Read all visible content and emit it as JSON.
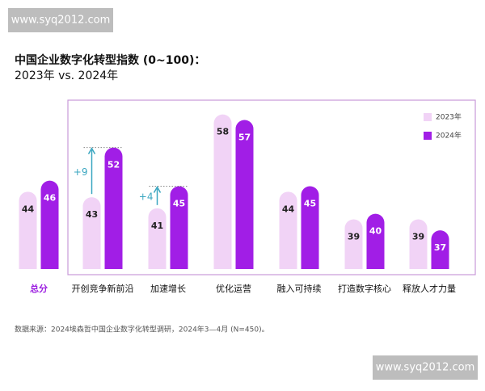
{
  "watermarks": [
    "www.syq2012.com",
    "www.syq2012.com"
  ],
  "chart_data": {
    "type": "bar",
    "title": "中国企业数字化转型指数 (0~100)：",
    "subtitle": "2023年 vs. 2024年",
    "categories": [
      "总分",
      "开创竞争新前沿",
      "加速增长",
      "优化运营",
      "融入可持续",
      "打造数字核心",
      "释放人才力量"
    ],
    "series": [
      {
        "name": "2023年",
        "color": "#f1d3f6",
        "values": [
          44,
          43,
          41,
          58,
          44,
          39,
          39
        ]
      },
      {
        "name": "2024年",
        "color": "#a11ee6",
        "values": [
          46,
          52,
          45,
          57,
          45,
          40,
          37
        ]
      }
    ],
    "ylim": [
      30,
      60
    ],
    "legend": "top-right",
    "annotations": [
      {
        "text": "+9",
        "category": "开创竞争新前沿"
      },
      {
        "text": "+4",
        "category": "加速增长"
      }
    ],
    "source": "数据来源：2024埃森哲中国企业数字化转型调研，2024年3—4月 (N=450)。"
  }
}
